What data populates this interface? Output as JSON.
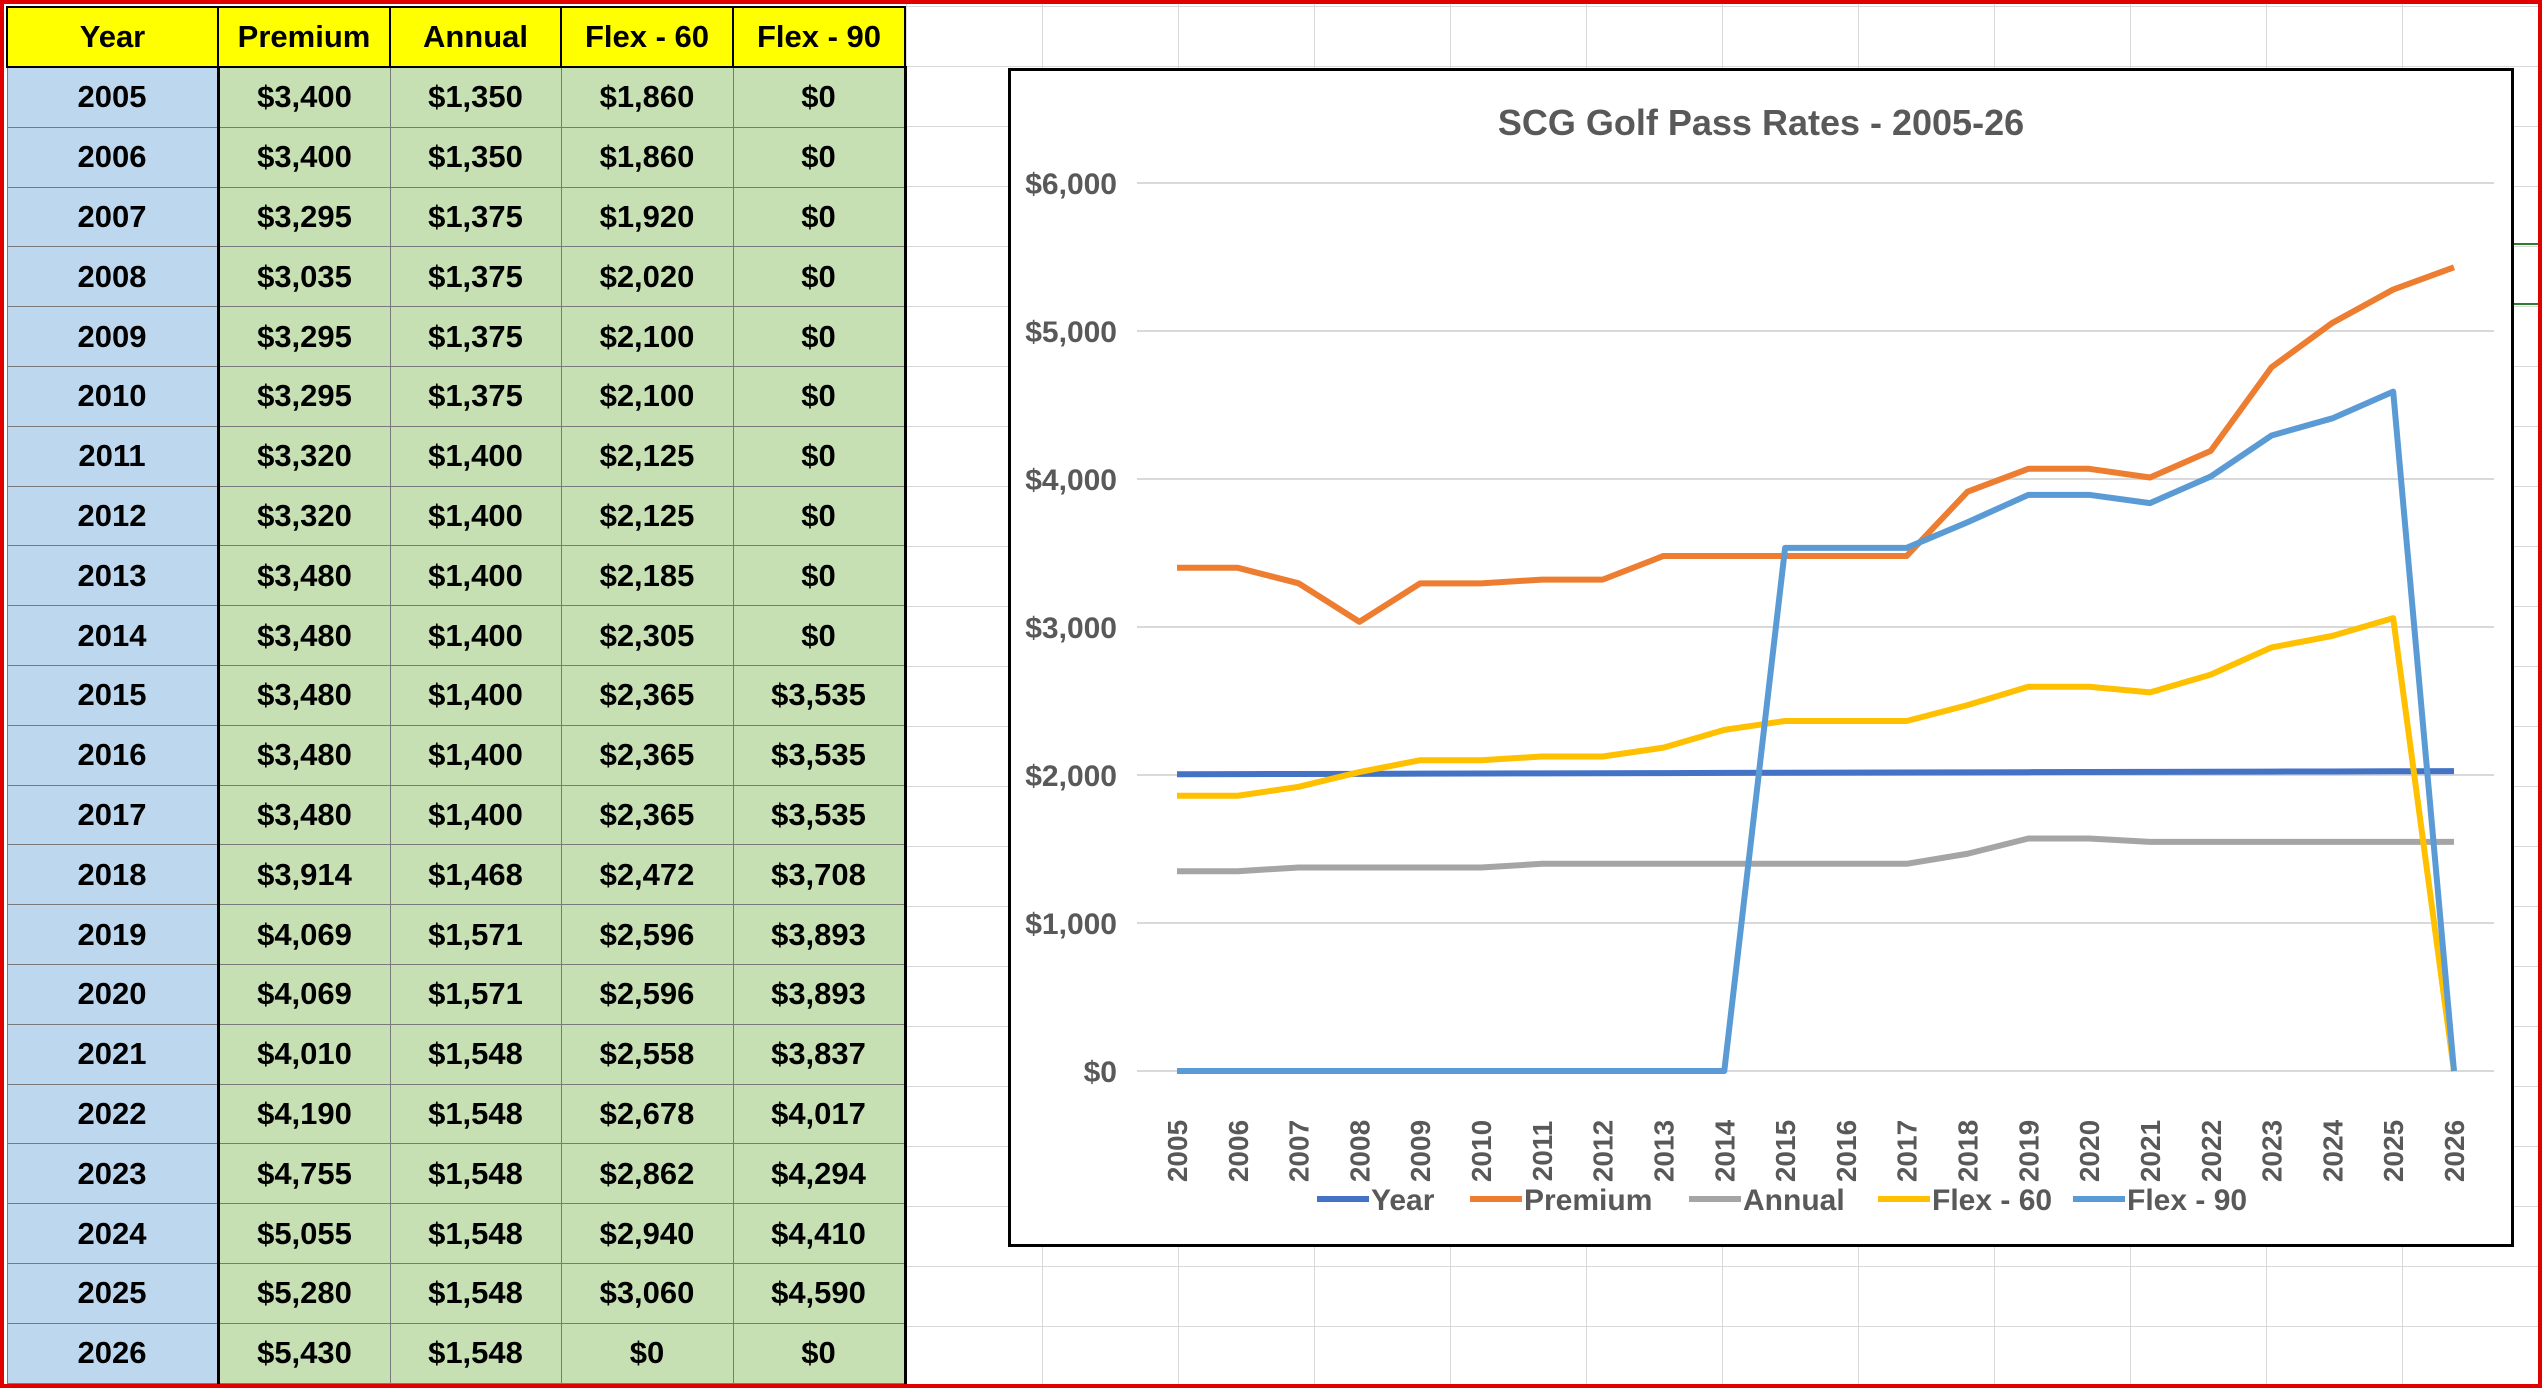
{
  "table": {
    "headers": [
      "Year",
      "Premium",
      "Annual",
      "Flex - 60",
      "Flex - 90"
    ],
    "rows": [
      [
        "2005",
        "$3,400",
        "$1,350",
        "$1,860",
        "$0"
      ],
      [
        "2006",
        "$3,400",
        "$1,350",
        "$1,860",
        "$0"
      ],
      [
        "2007",
        "$3,295",
        "$1,375",
        "$1,920",
        "$0"
      ],
      [
        "2008",
        "$3,035",
        "$1,375",
        "$2,020",
        "$0"
      ],
      [
        "2009",
        "$3,295",
        "$1,375",
        "$2,100",
        "$0"
      ],
      [
        "2010",
        "$3,295",
        "$1,375",
        "$2,100",
        "$0"
      ],
      [
        "2011",
        "$3,320",
        "$1,400",
        "$2,125",
        "$0"
      ],
      [
        "2012",
        "$3,320",
        "$1,400",
        "$2,125",
        "$0"
      ],
      [
        "2013",
        "$3,480",
        "$1,400",
        "$2,185",
        "$0"
      ],
      [
        "2014",
        "$3,480",
        "$1,400",
        "$2,305",
        "$0"
      ],
      [
        "2015",
        "$3,480",
        "$1,400",
        "$2,365",
        "$3,535"
      ],
      [
        "2016",
        "$3,480",
        "$1,400",
        "$2,365",
        "$3,535"
      ],
      [
        "2017",
        "$3,480",
        "$1,400",
        "$2,365",
        "$3,535"
      ],
      [
        "2018",
        "$3,914",
        "$1,468",
        "$2,472",
        "$3,708"
      ],
      [
        "2019",
        "$4,069",
        "$1,571",
        "$2,596",
        "$3,893"
      ],
      [
        "2020",
        "$4,069",
        "$1,571",
        "$2,596",
        "$3,893"
      ],
      [
        "2021",
        "$4,010",
        "$1,548",
        "$2,558",
        "$3,837"
      ],
      [
        "2022",
        "$4,190",
        "$1,548",
        "$2,678",
        "$4,017"
      ],
      [
        "2023",
        "$4,755",
        "$1,548",
        "$2,862",
        "$4,294"
      ],
      [
        "2024",
        "$5,055",
        "$1,548",
        "$2,940",
        "$4,410"
      ],
      [
        "2025",
        "$5,280",
        "$1,548",
        "$3,060",
        "$4,590"
      ],
      [
        "2026",
        "$5,430",
        "$1,548",
        "$0",
        "$0"
      ]
    ]
  },
  "chart_data": {
    "type": "line",
    "title": "SCG Golf Pass Rates - 2005-26",
    "xlabel": "",
    "ylabel": "",
    "ylim": [
      0,
      6000
    ],
    "yticks": [
      0,
      1000,
      2000,
      3000,
      4000,
      5000,
      6000
    ],
    "ytick_labels": [
      "$0",
      "$1,000",
      "$2,000",
      "$3,000",
      "$4,000",
      "$5,000",
      "$6,000"
    ],
    "grid": true,
    "legend_position": "bottom",
    "categories": [
      "2005",
      "2006",
      "2007",
      "2008",
      "2009",
      "2010",
      "2011",
      "2012",
      "2013",
      "2014",
      "2015",
      "2016",
      "2017",
      "2018",
      "2019",
      "2020",
      "2021",
      "2022",
      "2023",
      "2024",
      "2025",
      "2026"
    ],
    "series": [
      {
        "name": "Year",
        "color": "#4472c4",
        "values": [
          2005,
          2006,
          2007,
          2008,
          2009,
          2010,
          2011,
          2012,
          2013,
          2014,
          2015,
          2016,
          2017,
          2018,
          2019,
          2020,
          2021,
          2022,
          2023,
          2024,
          2025,
          2026
        ]
      },
      {
        "name": "Premium",
        "color": "#ed7d31",
        "values": [
          3400,
          3400,
          3295,
          3035,
          3295,
          3295,
          3320,
          3320,
          3480,
          3480,
          3480,
          3480,
          3480,
          3914,
          4069,
          4069,
          4010,
          4190,
          4755,
          5055,
          5280,
          5430
        ]
      },
      {
        "name": "Annual",
        "color": "#a5a5a5",
        "values": [
          1350,
          1350,
          1375,
          1375,
          1375,
          1375,
          1400,
          1400,
          1400,
          1400,
          1400,
          1400,
          1400,
          1468,
          1571,
          1571,
          1548,
          1548,
          1548,
          1548,
          1548,
          1548
        ]
      },
      {
        "name": "Flex - 60",
        "color": "#ffc000",
        "values": [
          1860,
          1860,
          1920,
          2020,
          2100,
          2100,
          2125,
          2125,
          2185,
          2305,
          2365,
          2365,
          2365,
          2472,
          2596,
          2596,
          2558,
          2678,
          2862,
          2940,
          3060,
          0
        ]
      },
      {
        "name": "Flex - 90",
        "color": "#5b9bd5",
        "values": [
          0,
          0,
          0,
          0,
          0,
          0,
          0,
          0,
          0,
          0,
          3535,
          3535,
          3535,
          3708,
          3893,
          3893,
          3837,
          4017,
          4294,
          4410,
          4590,
          0
        ]
      }
    ]
  }
}
